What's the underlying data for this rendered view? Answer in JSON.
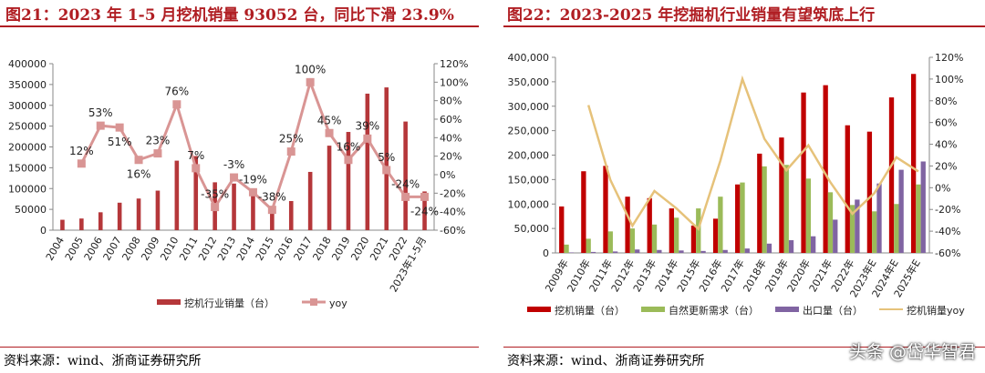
{
  "chart_data": [
    {
      "type": "bar+line",
      "title": "图21：2023 年 1-5 月挖机销量 93052 台，同比下滑 23.9%",
      "categories": [
        "2004",
        "2005",
        "2006",
        "2007",
        "2008",
        "2009",
        "2010",
        "2011",
        "2012",
        "2013",
        "2014",
        "2015",
        "2016",
        "2017",
        "2018",
        "2019",
        "2020",
        "2021",
        "2022",
        "2023年1-5月"
      ],
      "series": [
        {
          "name": "挖机行业销量（台）",
          "type": "bar",
          "axis": "left",
          "color": "#b5373a",
          "values": [
            25000,
            28000,
            43000,
            66000,
            76000,
            95000,
            167000,
            178000,
            115000,
            112000,
            91000,
            56000,
            70000,
            140000,
            203000,
            236000,
            328000,
            343000,
            261000,
            93052
          ]
        },
        {
          "name": "yoy",
          "type": "line",
          "axis": "right",
          "color": "#d99594",
          "values": [
            null,
            12,
            53,
            51,
            16,
            23,
            76,
            7,
            -35,
            -3,
            -19,
            -38,
            25,
            100,
            45,
            16,
            39,
            5,
            -24,
            -24
          ],
          "labels": [
            "",
            "12%",
            "53%",
            "51%",
            "16%",
            "23%",
            "76%",
            "7%",
            "-35%",
            "-3%",
            "-19%",
            "-38%",
            "25%",
            "100%",
            "45%",
            "16%",
            "39%",
            "5%",
            "-24%",
            "-24%"
          ]
        }
      ],
      "ylim": [
        0,
        400000
      ],
      "yticks": [
        "0",
        "50000",
        "100000",
        "150000",
        "200000",
        "250000",
        "300000",
        "350000",
        "400000"
      ],
      "y2lim": [
        -60,
        120
      ],
      "y2ticks": [
        "-60%",
        "-40%",
        "-20%",
        "0%",
        "20%",
        "40%",
        "60%",
        "80%",
        "100%",
        "120%"
      ],
      "legend": "bottom",
      "grid": false
    },
    {
      "type": "bar+line",
      "title": "图22：2023-2025 年挖掘机行业销量有望筑底上行",
      "categories": [
        "2009年",
        "2010年",
        "2011年",
        "2012年",
        "2013年",
        "2014年",
        "2015年",
        "2016年",
        "2017年",
        "2018年",
        "2019年",
        "2020年",
        "2021年",
        "2022年",
        "2023年E",
        "2024年E",
        "2025年E"
      ],
      "series": [
        {
          "name": "挖机销量（台）",
          "type": "bar",
          "axis": "left",
          "color": "#c00000",
          "values": [
            95000,
            167000,
            178000,
            115000,
            112000,
            91000,
            56000,
            70000,
            140000,
            203000,
            236000,
            328000,
            343000,
            261000,
            248000,
            318000,
            366000
          ]
        },
        {
          "name": "自然更新需求（台）",
          "type": "bar",
          "axis": "left",
          "color": "#9bbb59",
          "values": [
            17000,
            29000,
            44000,
            50000,
            58000,
            72000,
            91000,
            115000,
            144000,
            177000,
            180000,
            152000,
            124000,
            98000,
            85000,
            100000,
            140000
          ]
        },
        {
          "name": "出口量（台）",
          "type": "bar",
          "axis": "left",
          "color": "#8064a2",
          "values": [
            1000,
            2000,
            3000,
            7000,
            6000,
            5000,
            4000,
            6000,
            9000,
            19000,
            26000,
            34000,
            68000,
            109000,
            142000,
            170000,
            187000
          ]
        },
        {
          "name": "挖机销量yoy",
          "type": "line",
          "axis": "right",
          "color": "#e6c27a",
          "values": [
            null,
            76,
            7,
            -35,
            -3,
            -19,
            -38,
            25,
            100,
            45,
            16,
            39,
            5,
            -24,
            -5,
            28,
            15
          ]
        }
      ],
      "ylim": [
        0,
        400000
      ],
      "yticks": [
        "0",
        "50,000",
        "100,000",
        "150,000",
        "200,000",
        "250,000",
        "300,000",
        "350,000",
        "400,000"
      ],
      "y2lim": [
        -60,
        120
      ],
      "y2ticks": [
        "-60%",
        "-40%",
        "-20%",
        "0%",
        "20%",
        "40%",
        "60%",
        "80%",
        "100%",
        "120%"
      ],
      "legend": "bottom",
      "grid": false
    }
  ],
  "source": "资料来源：wind、浙商证券研究所",
  "watermark": "头条 @岱华智君"
}
